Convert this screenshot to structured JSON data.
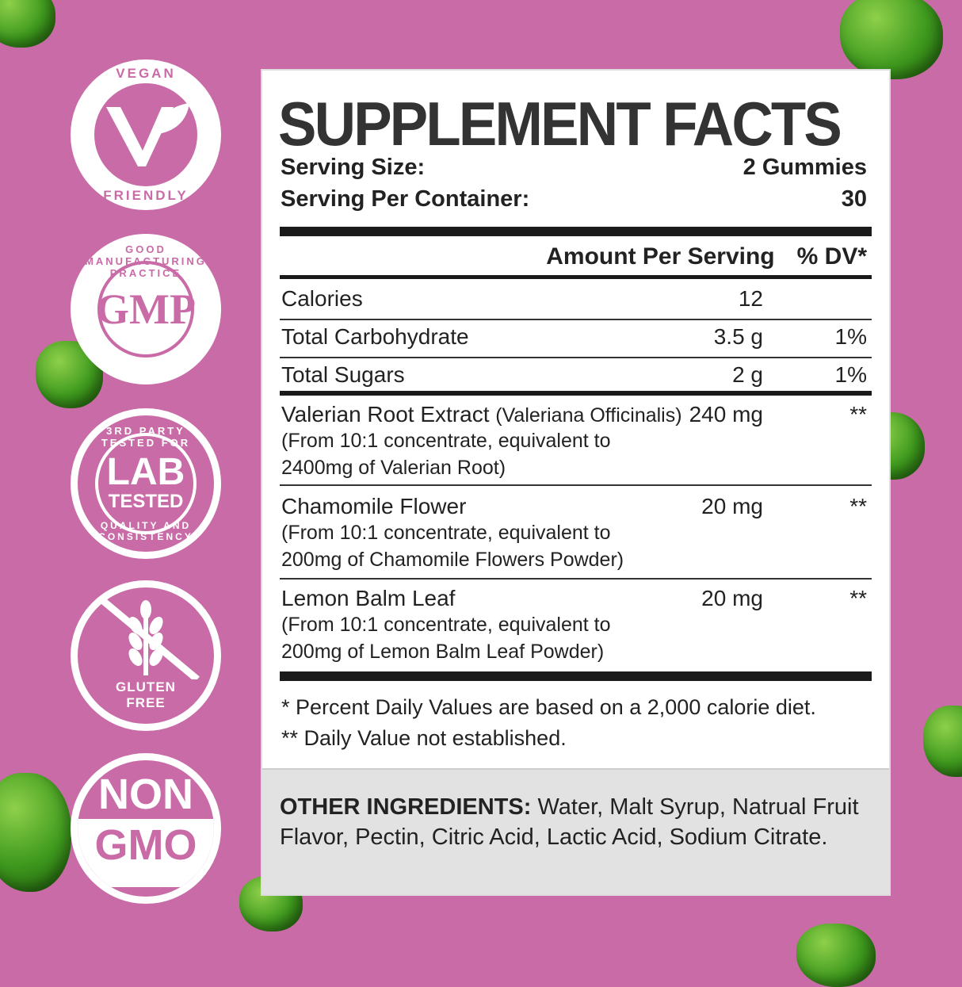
{
  "badges": [
    {
      "top": "VEGAN",
      "bottom": "FRIENDLY",
      "icon": "v-leaf-icon"
    },
    {
      "ring": "GOOD MANUFACTURING PRACTICE",
      "center": "GMP"
    },
    {
      "ring_top": "3RD PARTY TESTED FOR",
      "ring_bottom": "QUALITY AND CONSISTENCY",
      "center1": "LAB",
      "center2": "TESTED"
    },
    {
      "line1": "GLUTEN",
      "line2": "FREE",
      "icon": "wheat-crossed-icon"
    },
    {
      "line1": "NON",
      "line2": "GMO"
    }
  ],
  "facts": {
    "title": "SUPPLEMENT FACTS",
    "serving_size_label": "Serving Size:",
    "serving_size": "2 Gummies",
    "servings_label": "Serving Per Container:",
    "servings": "30",
    "col_amount": "Amount Per Serving",
    "col_dv": "% DV*",
    "rows": [
      {
        "name": "Calories",
        "amount": "12",
        "dv": ""
      },
      {
        "name": "Total Carbohydrate",
        "amount": "3.5 g",
        "dv": "1%"
      },
      {
        "name": "Total Sugars",
        "amount": "2 g",
        "dv": "1%"
      },
      {
        "name": "Valerian Root Extract",
        "latin": "(Valeriana Officinalis)",
        "sub1": "(From 10:1 concentrate, equivalent to",
        "sub2": "2400mg of Valerian Root)",
        "amount": "240 mg",
        "dv": "**"
      },
      {
        "name": "Chamomile Flower",
        "sub1": "(From 10:1 concentrate, equivalent to",
        "sub2": "200mg of Chamomile Flowers Powder)",
        "amount": "20 mg",
        "dv": "**"
      },
      {
        "name": "Lemon Balm Leaf",
        "sub1": "(From 10:1 concentrate, equivalent to",
        "sub2": "200mg of Lemon Balm Leaf Powder)",
        "amount": "20 mg",
        "dv": "**"
      }
    ],
    "footnote1": "* Percent Daily Values are based on a 2,000 calorie diet.",
    "footnote2": "** Daily Value not established.",
    "other_label": "OTHER INGREDIENTS:",
    "other_text": " Water, Malt Syrup, Natrual Fruit Flavor, Pectin, Citric Acid, Lactic Acid, Sodium Citrate."
  },
  "colors": {
    "background": "#c96ba6",
    "gummy": "#3f9a1e",
    "other_bg": "#e2e2e2"
  }
}
